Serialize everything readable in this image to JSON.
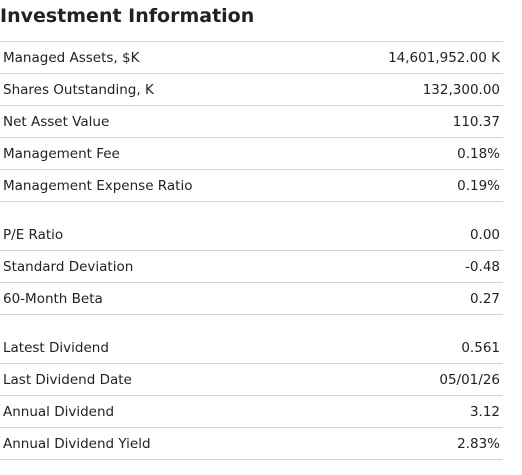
{
  "header": {
    "title": "Investment Information"
  },
  "sections": [
    {
      "rows": [
        [
          "Managed Assets, $K",
          "14,601,952.00 K"
        ],
        [
          "Shares Outstanding, K",
          "132,300.00"
        ],
        [
          "Net Asset Value",
          "110.37"
        ],
        [
          "Management Fee",
          "0.18%"
        ],
        [
          "Management Expense Ratio",
          "0.19%"
        ]
      ]
    },
    {
      "rows": [
        [
          "P/E Ratio",
          "0.00"
        ],
        [
          "Standard Deviation",
          "-0.48"
        ],
        [
          "60-Month Beta",
          "0.27"
        ]
      ]
    },
    {
      "rows": [
        [
          "Latest Dividend",
          "0.561"
        ],
        [
          "Last Dividend Date",
          "05/01/26"
        ],
        [
          "Annual Dividend",
          "3.12"
        ],
        [
          "Annual Dividend Yield",
          "2.83%"
        ]
      ]
    }
  ]
}
